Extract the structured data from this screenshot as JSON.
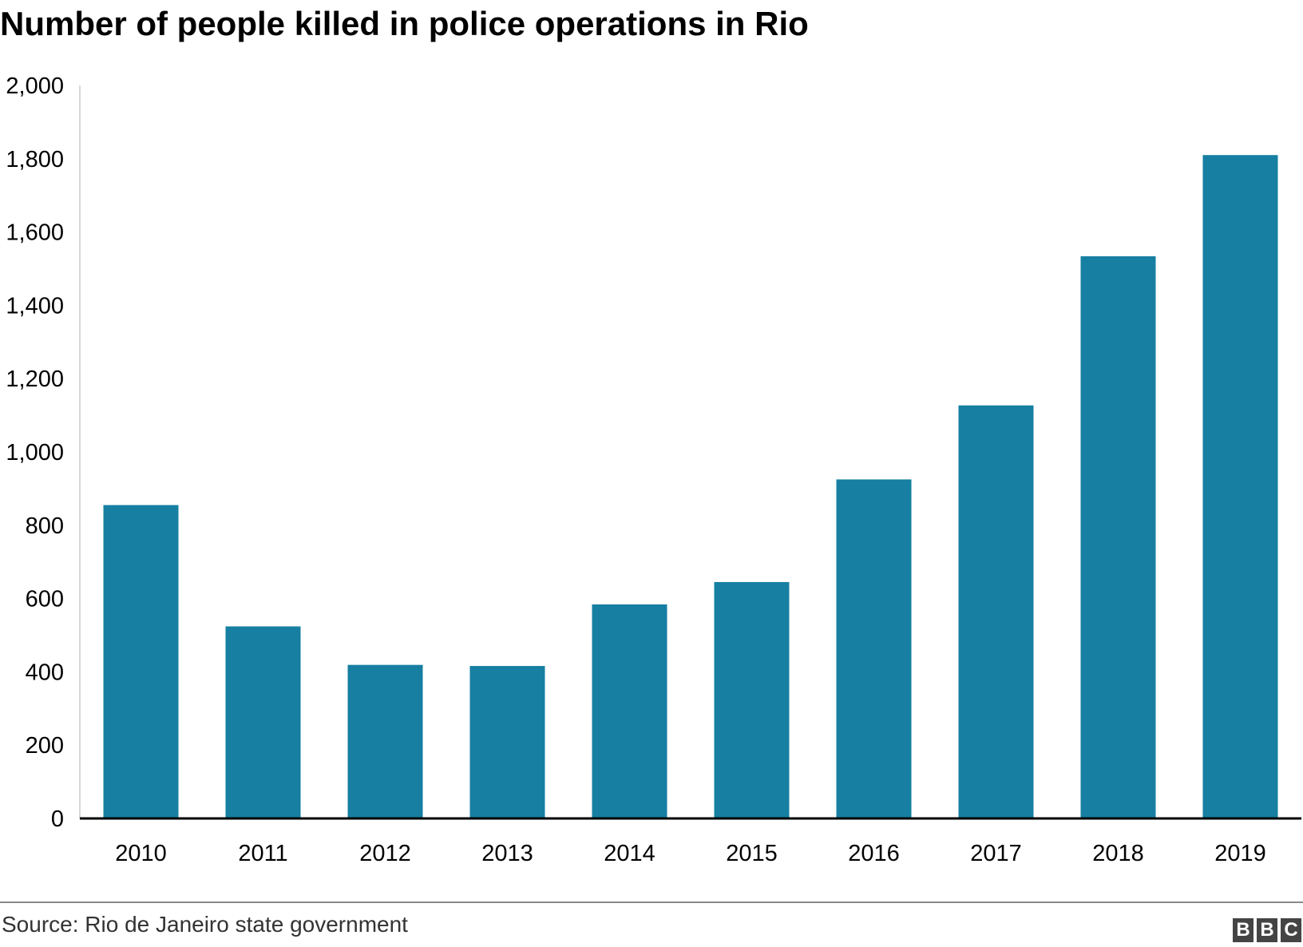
{
  "header": {
    "title": "Number of people killed in police operations in Rio"
  },
  "footer": {
    "source": "Source: Rio de Janeiro state government",
    "logo_text": "BBC"
  },
  "colors": {
    "bar": "#167fa2",
    "axis": "#000000",
    "text": "#000000",
    "source_text": "#333333",
    "logo_bg": "#444444"
  },
  "chart_data": {
    "type": "bar",
    "title": "Number of people killed in police operations in Rio",
    "categories": [
      "2010",
      "2011",
      "2012",
      "2013",
      "2014",
      "2015",
      "2016",
      "2017",
      "2018",
      "2019"
    ],
    "values": [
      855,
      524,
      419,
      416,
      584,
      645,
      925,
      1127,
      1534,
      1810
    ],
    "ylim": [
      0,
      2000
    ],
    "yticks": [
      0,
      200,
      400,
      600,
      800,
      1000,
      1200,
      1400,
      1600,
      1800,
      2000
    ],
    "ytick_labels": [
      "0",
      "200",
      "400",
      "600",
      "800",
      "1,000",
      "1,200",
      "1,400",
      "1,600",
      "1,800",
      "2,000"
    ],
    "xlabel": "",
    "ylabel": "",
    "grid": false,
    "legend": "none"
  }
}
